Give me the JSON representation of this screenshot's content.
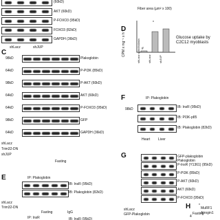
{
  "panel_top": {
    "labels": [
      "(60kD)",
      "AKT (60kD)",
      "P-FOXO3 (95kD)",
      "FOXO3 (82kD)",
      "GAPDH (36kD)"
    ],
    "lanes": [
      "shLacz",
      "shJUP"
    ]
  },
  "panel_fiber": {
    "xlabel": "Fiber area (µm² x 100)"
  },
  "panel_d": {
    "letter": "D",
    "ylabel": "CPM x mg⁻¹ x h⁻¹",
    "categories": [
      "shLacz cytochalasin",
      "shLacz",
      "shJUP"
    ],
    "values": [
      0.1,
      1.5,
      1.7
    ],
    "marks": [
      "#",
      "*"
    ],
    "caption": "Glucose uptake by C2C12 myoblasts"
  },
  "panel_c": {
    "letter": "C",
    "markers": [
      "98kD",
      "64kD",
      "98kD",
      "64kD",
      "64kD",
      "98kD",
      "64kD"
    ],
    "labels": [
      "Plakoglobin",
      "P-PI3K (85kD)",
      "P-AKT (60kD)",
      "AKT (60kD)",
      "P-FOXO3 (95kD)",
      "GFP",
      "GAPDH (36kD)"
    ],
    "rows": [
      "shLacz",
      "Trim32-DN",
      "shJUP"
    ],
    "condition": "Fasting"
  },
  "panel_f": {
    "letter": "F",
    "ip": "IP: Plakoglobin",
    "marker": "98kD",
    "labels": [
      "IB: InsR (95kD)",
      "IB: PI3K-p85",
      "IB: Plakoglobin (82kD)"
    ],
    "lanes": [
      "Heart",
      "Liver"
    ]
  },
  "panel_g": {
    "letter": "G",
    "labels": [
      "GFP-plakoglobin",
      "Plakoglobin",
      "P-InsR (Y1361) (95kD)",
      "P-PI3K (85kD)",
      "P-AKT (60kD)",
      "AKT (60kD)",
      "P-FOXO3 (95kD)"
    ],
    "rows": [
      "shLacz",
      "GFP-Plakoglobin"
    ],
    "condition": "Fasting"
  },
  "panel_e": {
    "letter": "E",
    "ip": "IP: Plakoglobin",
    "labels": [
      "IB: InsR (95kD)",
      "IB: Plakoglobin (82kD)"
    ],
    "rows": [
      "shLacz",
      "Trim32-DN"
    ],
    "condition": "Fasting",
    "control": "IgG"
  },
  "panel_bottom": {
    "ip": "IP: InsR",
    "label": "IB: InsR (95kD)"
  },
  "panel_h": {
    "letter": "H",
    "legend": [
      "MuRF1",
      "Atrogin1"
    ],
    "tick": "4",
    "mark": "*"
  }
}
